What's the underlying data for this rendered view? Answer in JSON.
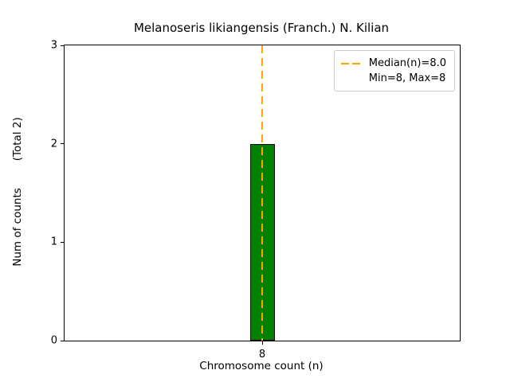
{
  "chart_data": {
    "type": "bar",
    "title": "Melanoseris likiangensis (Franch.) N. Kilian",
    "xlabel": "Chromosome count (n)",
    "ylabel": "Num of counts",
    "ylabel_secondary": "(Total 2)",
    "categories": [
      "8"
    ],
    "values": [
      2
    ],
    "ylim": [
      0,
      3
    ],
    "yticks": [
      0,
      1,
      2,
      3
    ],
    "grid": false,
    "bar_color": "#008000",
    "bar_edge_color": "#000000",
    "median_line": {
      "x_value": 8.0,
      "color": "#FFA500",
      "style": "dashed"
    },
    "legend": {
      "position": "upper right",
      "entries": [
        {
          "label": "Median(n)=8.0",
          "sample": "dashed-orange-line"
        },
        {
          "label": "Min=8, Max=8",
          "sample": "none"
        }
      ]
    }
  }
}
